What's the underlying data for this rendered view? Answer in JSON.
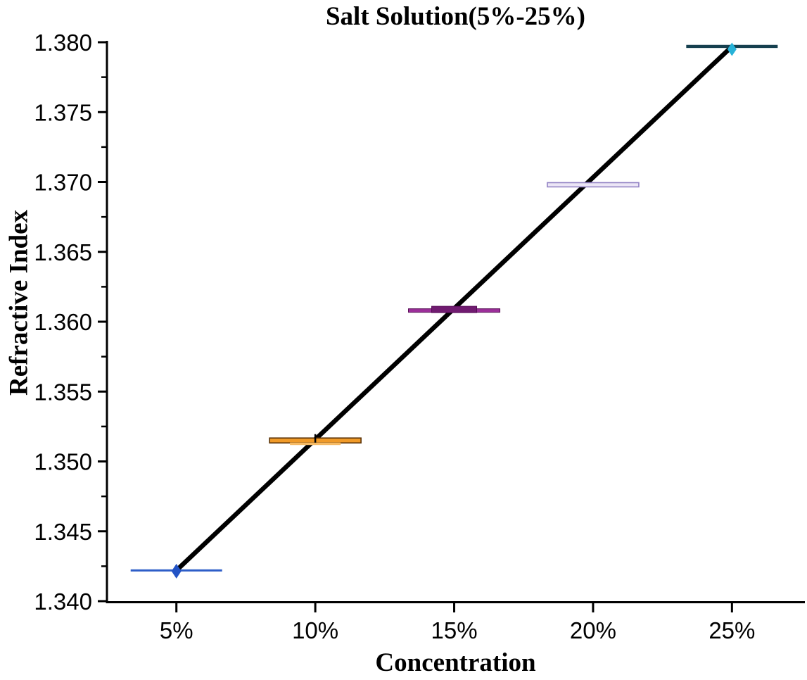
{
  "chart_data": {
    "type": "box",
    "title": "Salt Solution(5%-25%)",
    "xlabel": "Concentration",
    "ylabel": "Refractive Index",
    "categories": [
      "5%",
      "10%",
      "15%",
      "20%",
      "25%"
    ],
    "x_values": [
      5,
      10,
      15,
      20,
      25
    ],
    "values": [
      1.3422,
      1.3515,
      1.3608,
      1.3698,
      1.3797
    ],
    "xlim": [
      2.5,
      27.6
    ],
    "ylim": [
      1.34,
      1.38
    ],
    "y_major_step": 0.005,
    "y_minor_step": 0.0025,
    "y_tick_decimals": 3,
    "y_tick_labels": [
      "1.340",
      "1.345",
      "1.350",
      "1.355",
      "1.360",
      "1.365",
      "1.370",
      "1.375",
      "1.380"
    ],
    "grid": false,
    "legend": "none",
    "axis_color": "#000000",
    "trend_line": {
      "color": "#000000",
      "from_x": 5,
      "from_value": 1.3422,
      "to_x": 25,
      "to_value": 1.3797
    },
    "points": [
      {
        "x": 5,
        "label": "5%",
        "value": 1.3422,
        "style": "line-diamond",
        "line_color": "#2e5ec8",
        "marker": "diamond",
        "marker_color": "#2353c5"
      },
      {
        "x": 10,
        "label": "10%",
        "value": 1.3515,
        "style": "box-plus",
        "line_color": "#5a3205",
        "fill_color": "#f09a28",
        "accent_color": "#f6bb66",
        "marker": "plus",
        "marker_color": "#000000"
      },
      {
        "x": 15,
        "label": "15%",
        "value": 1.3608,
        "style": "box-solid",
        "line_color": "#9c2f9a",
        "fill_color": "#701b70",
        "edge_color": "#560b55"
      },
      {
        "x": 20,
        "label": "20%",
        "value": 1.3698,
        "style": "box-light",
        "line_color": "#9383c5",
        "fill_color": "#ece6f6"
      },
      {
        "x": 25,
        "label": "25%",
        "value": 1.3797,
        "style": "line-diamond-below",
        "line_color": "#16404f",
        "marker": "diamond",
        "marker_color": "#27b2d8"
      }
    ]
  }
}
